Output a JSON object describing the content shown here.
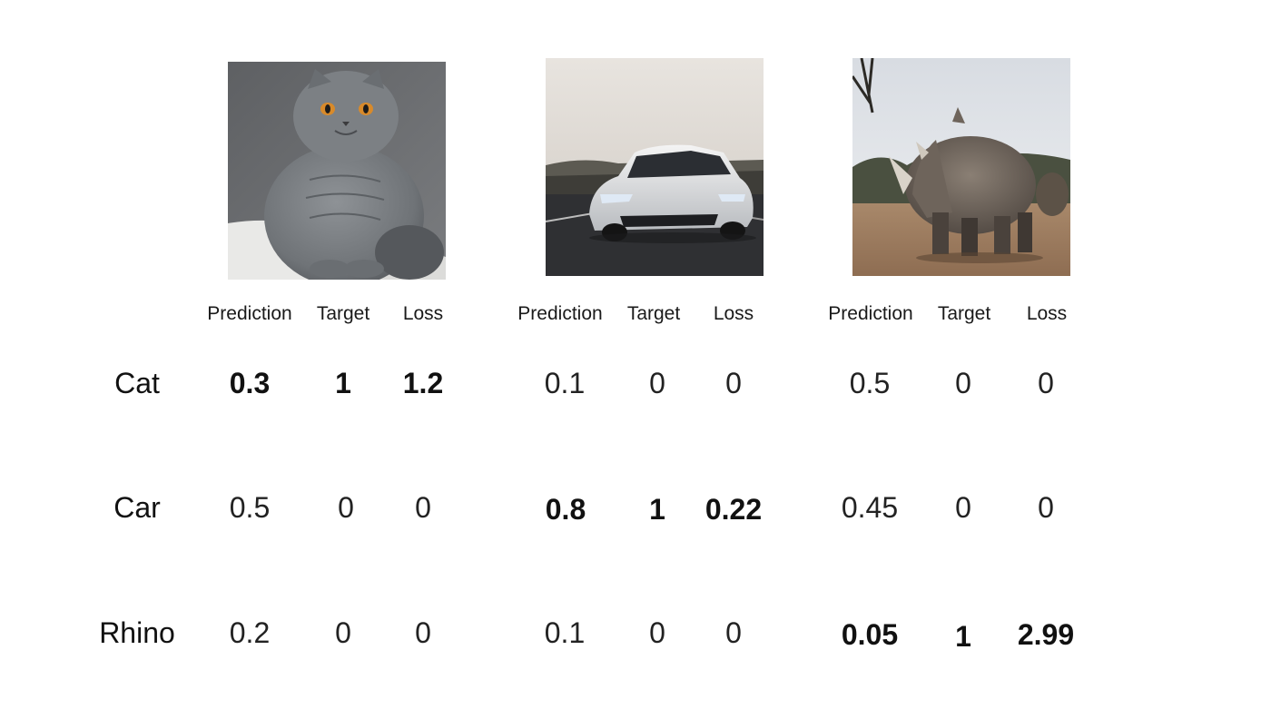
{
  "columns": [
    "Prediction",
    "Target",
    "Loss"
  ],
  "images": [
    {
      "label": "Cat",
      "icon": "cat-photo"
    },
    {
      "label": "Car",
      "icon": "car-photo"
    },
    {
      "label": "Rhino",
      "icon": "rhino-photo"
    }
  ],
  "rows": [
    {
      "label": "Cat",
      "groups": [
        {
          "prediction": "0.3",
          "target": "1",
          "loss": "1.2",
          "highlight": true
        },
        {
          "prediction": "0.1",
          "target": "0",
          "loss": "0",
          "highlight": false
        },
        {
          "prediction": "0.5",
          "target": "0",
          "loss": "0",
          "highlight": false
        }
      ]
    },
    {
      "label": "Car",
      "groups": [
        {
          "prediction": "0.5",
          "target": "0",
          "loss": "0",
          "highlight": false
        },
        {
          "prediction": "0.8",
          "target": "1",
          "loss": "0.22",
          "highlight": true
        },
        {
          "prediction": "0.45",
          "target": "0",
          "loss": "0",
          "highlight": false
        }
      ]
    },
    {
      "label": "Rhino",
      "groups": [
        {
          "prediction": "0.2",
          "target": "0",
          "loss": "0",
          "highlight": false
        },
        {
          "prediction": "0.1",
          "target": "0",
          "loss": "0",
          "highlight": false
        },
        {
          "prediction": "0.05",
          "target": "1",
          "loss": "2.99",
          "highlight": true
        }
      ]
    }
  ]
}
